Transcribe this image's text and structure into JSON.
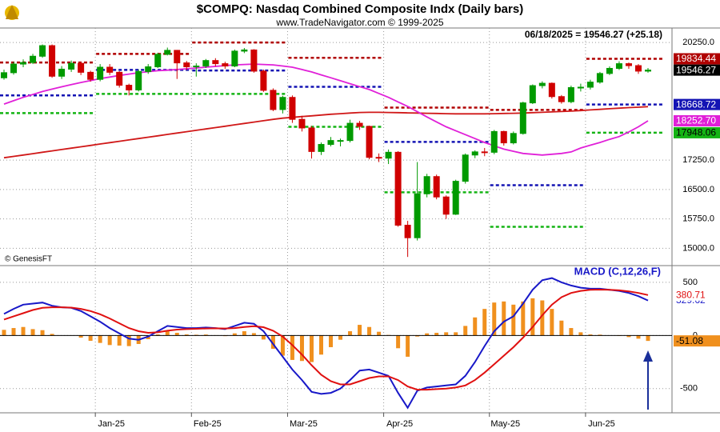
{
  "title": "$COMPQ:  Nasdaq Combined Composite Indx  (Daily bars)",
  "subtitle": "www.TradeNavigator.com © 1999-2025",
  "info": "06/18/2025 = 19546.27 (+25.18)",
  "credit": "© GenesisFT",
  "chart_data": [
    {
      "type": "candlestick",
      "ylim": [
        14600,
        20620
      ],
      "yticks": [
        {
          "value": 15000,
          "label": "15000.0"
        },
        {
          "value": 15750,
          "label": "15750.0"
        },
        {
          "value": 16500,
          "label": "16500.0"
        },
        {
          "value": 17250,
          "label": "17250.0"
        },
        {
          "value": 20250,
          "label": "20250.0"
        }
      ],
      "grid": true,
      "up_color": "#009a00",
      "down_color": "#d00000",
      "close_color": "#000000",
      "open": [
        19350,
        19480,
        19700,
        19740,
        19900,
        20170,
        19390,
        19570,
        19720,
        19490,
        19310,
        19620,
        19490,
        19160,
        19040,
        19510,
        19630,
        19950,
        20050,
        19730,
        19630,
        19650,
        19790,
        19710,
        19650,
        20030,
        20060,
        19520,
        19030,
        18540,
        18850,
        18290,
        18070,
        17470,
        17650,
        17750,
        17750,
        18190,
        18110,
        17320,
        17300,
        17450,
        15590,
        15270,
        16390,
        16830,
        16310,
        15870,
        16710,
        17380,
        17460,
        17450,
        17980,
        17690,
        17930,
        18710,
        19150,
        19210,
        18870,
        18740,
        19100,
        19110,
        19240,
        19460,
        19590,
        19710,
        19660,
        19520
      ],
      "high": [
        19560,
        19760,
        19820,
        19960,
        20200,
        20200,
        19650,
        19790,
        19760,
        19530,
        19700,
        19700,
        19520,
        19200,
        19560,
        19700,
        19990,
        20120,
        20060,
        19780,
        19720,
        19830,
        19850,
        19760,
        20070,
        20110,
        20080,
        19560,
        19080,
        18890,
        18900,
        18380,
        18120,
        17700,
        17840,
        17800,
        18280,
        18250,
        18130,
        17420,
        17520,
        17480,
        15700,
        17200,
        16900,
        16880,
        16350,
        16750,
        17420,
        17500,
        17560,
        18020,
        18000,
        17980,
        18740,
        19180,
        19260,
        19230,
        18910,
        19150,
        19200,
        19300,
        19500,
        19640,
        19770,
        19740,
        19700,
        19600
      ],
      "low": [
        19300,
        19430,
        19620,
        19700,
        19860,
        19350,
        19320,
        19500,
        19420,
        19250,
        19260,
        19420,
        19100,
        18900,
        19000,
        19450,
        19600,
        19920,
        19320,
        19550,
        19380,
        19600,
        19640,
        19580,
        19620,
        19980,
        19480,
        18990,
        18500,
        18440,
        18200,
        17980,
        17290,
        17380,
        17600,
        17600,
        17700,
        18020,
        17270,
        17200,
        17150,
        15550,
        14780,
        15200,
        16300,
        16250,
        15750,
        15850,
        16650,
        17300,
        17350,
        17400,
        17620,
        17650,
        17900,
        18680,
        19080,
        18820,
        18690,
        18700,
        19000,
        19050,
        19200,
        19420,
        19550,
        19580,
        19450,
        19480
      ],
      "close": [
        19480,
        19700,
        19740,
        19900,
        20170,
        19390,
        19570,
        19720,
        19490,
        19310,
        19620,
        19490,
        19160,
        19040,
        19510,
        19630,
        19950,
        20050,
        19730,
        19630,
        19650,
        19790,
        19710,
        19650,
        20030,
        20060,
        19520,
        19030,
        18540,
        18850,
        18290,
        18070,
        17470,
        17650,
        17750,
        17750,
        18190,
        18110,
        17320,
        17300,
        17450,
        15590,
        15270,
        16390,
        16830,
        16310,
        15870,
        16710,
        17380,
        17460,
        17450,
        17980,
        17690,
        17930,
        18710,
        19150,
        19210,
        18870,
        18740,
        19100,
        19110,
        19240,
        19460,
        19590,
        19710,
        19660,
        19520,
        19546.27
      ],
      "overlays": [
        {
          "color": "#d01818",
          "values": [
            17310,
            17345,
            17380,
            17415,
            17450,
            17485,
            17520,
            17555,
            17590,
            17625,
            17660,
            17695,
            17730,
            17765,
            17800,
            17835,
            17870,
            17905,
            17940,
            17975,
            18010,
            18045,
            18080,
            18115,
            18150,
            18185,
            18220,
            18255,
            18290,
            18320,
            18340,
            18360,
            18380,
            18400,
            18420,
            18435,
            18450,
            18465,
            18470,
            18470,
            18465,
            18460,
            18455,
            18450,
            18445,
            18440,
            18435,
            18430,
            18430,
            18430,
            18430,
            18435,
            18440,
            18445,
            18450,
            18460,
            18470,
            18480,
            18490,
            18500,
            18515,
            18530,
            18545,
            18560,
            18575,
            18590,
            18600,
            18615
          ]
        },
        {
          "color": "#e020d8",
          "values": [
            18680,
            18765,
            18850,
            18925,
            19000,
            19060,
            19120,
            19175,
            19230,
            19280,
            19330,
            19370,
            19410,
            19445,
            19480,
            19505,
            19530,
            19545,
            19560,
            19580,
            19600,
            19620,
            19640,
            19660,
            19680,
            19690,
            19700,
            19690,
            19680,
            19650,
            19620,
            19560,
            19500,
            19425,
            19350,
            19275,
            19200,
            19125,
            19050,
            18950,
            18850,
            18735,
            18620,
            18485,
            18350,
            18225,
            18100,
            18000,
            17900,
            17800,
            17700,
            17615,
            17530,
            17475,
            17420,
            17400,
            17380,
            17400,
            17420,
            17460,
            17560,
            17630,
            17700,
            17780,
            17850,
            17970,
            18100,
            18252.7
          ],
          "value_labels": [
            null,
            null,
            null,
            null,
            null,
            null,
            null,
            null,
            null,
            null,
            null,
            null,
            null,
            null,
            null,
            null,
            null,
            null,
            null,
            null,
            null,
            null,
            null,
            null,
            null,
            null,
            null,
            null,
            null,
            null,
            null,
            null,
            null,
            null,
            null,
            null,
            null,
            null,
            null,
            null,
            null,
            null,
            null,
            null,
            null,
            null,
            null,
            null,
            null,
            null,
            null,
            null,
            null,
            null,
            null,
            null,
            null,
            null,
            null,
            null,
            null,
            null,
            null,
            null,
            null,
            null,
            null,
            "18252.70"
          ]
        }
      ],
      "levels": [
        {
          "color": "#b00000",
          "values": [
            19740,
            19960,
            20250,
            19860,
            18590,
            18530,
            19834.44
          ]
        },
        {
          "color": "#1414b4",
          "values": [
            18900,
            19550,
            19535,
            19120,
            17715,
            16610,
            18668.72
          ]
        },
        {
          "color": "#14b414",
          "values": [
            18450,
            18940,
            18940,
            18100,
            16430,
            15550,
            17948.06
          ]
        }
      ]
    },
    {
      "type": "macd",
      "title": "MACD (C,12,26,F)",
      "categories": [
        null,
        null,
        null,
        null,
        null,
        null,
        null,
        null,
        null,
        null,
        "Jan-25",
        null,
        null,
        null,
        null,
        null,
        null,
        null,
        null,
        null,
        "Feb-25",
        null,
        null,
        null,
        null,
        null,
        null,
        null,
        null,
        null,
        "Mar-25",
        null,
        null,
        null,
        null,
        null,
        null,
        null,
        null,
        null,
        "Apr-25",
        null,
        null,
        null,
        null,
        null,
        null,
        null,
        null,
        null,
        null,
        "May-25",
        null,
        null,
        null,
        null,
        null,
        null,
        null,
        null,
        null,
        "Jun-25",
        null,
        null,
        null,
        null,
        null,
        null
      ],
      "ylim": [
        -720,
        650
      ],
      "yticks": [
        500,
        0,
        -500
      ],
      "series": [
        {
          "color": "#1818c8",
          "values": [
            203,
            250,
            290,
            300,
            310,
            280,
            265,
            260,
            230,
            180,
            130,
            70,
            20,
            -30,
            -40,
            -10,
            40,
            90,
            80,
            70,
            70,
            75,
            70,
            60,
            90,
            120,
            110,
            40,
            -80,
            -200,
            -320,
            -420,
            -530,
            -550,
            -540,
            -500,
            -420,
            -330,
            -320,
            -350,
            -380,
            -540,
            -680,
            -520,
            -490,
            -480,
            -470,
            -460,
            -380,
            -250,
            -100,
            40,
            130,
            180,
            300,
            430,
            520,
            540,
            500,
            470,
            450,
            440,
            440,
            430,
            420,
            400,
            370,
            329.62
          ]
        },
        {
          "color": "#e01010",
          "values": [
            150,
            180,
            210,
            240,
            260,
            265,
            265,
            262,
            250,
            230,
            200,
            160,
            115,
            70,
            40,
            25,
            30,
            45,
            55,
            60,
            63,
            66,
            67,
            66,
            70,
            80,
            88,
            78,
            45,
            -10,
            -90,
            -180,
            -280,
            -370,
            -430,
            -460,
            -460,
            -430,
            -400,
            -385,
            -385,
            -420,
            -480,
            -510,
            -510,
            -505,
            -500,
            -490,
            -470,
            -420,
            -350,
            -270,
            -190,
            -110,
            -20,
            80,
            190,
            290,
            360,
            400,
            420,
            430,
            432,
            430,
            425,
            415,
            400,
            380.71
          ]
        }
      ],
      "histogram": {
        "color": "#f0901e",
        "values": [
          53,
          70,
          80,
          60,
          50,
          15,
          0,
          -2,
          -20,
          -50,
          -70,
          -90,
          -95,
          -100,
          -80,
          -35,
          10,
          45,
          25,
          10,
          7,
          9,
          3,
          -6,
          20,
          40,
          22,
          -38,
          -125,
          -190,
          -230,
          -240,
          -250,
          -180,
          -110,
          -40,
          40,
          100,
          80,
          35,
          5,
          -120,
          -200,
          -10,
          20,
          25,
          30,
          30,
          90,
          170,
          250,
          310,
          320,
          290,
          320,
          350,
          330,
          250,
          140,
          70,
          30,
          10,
          8,
          0,
          -5,
          -15,
          -30,
          -51.08
        ]
      }
    }
  ]
}
